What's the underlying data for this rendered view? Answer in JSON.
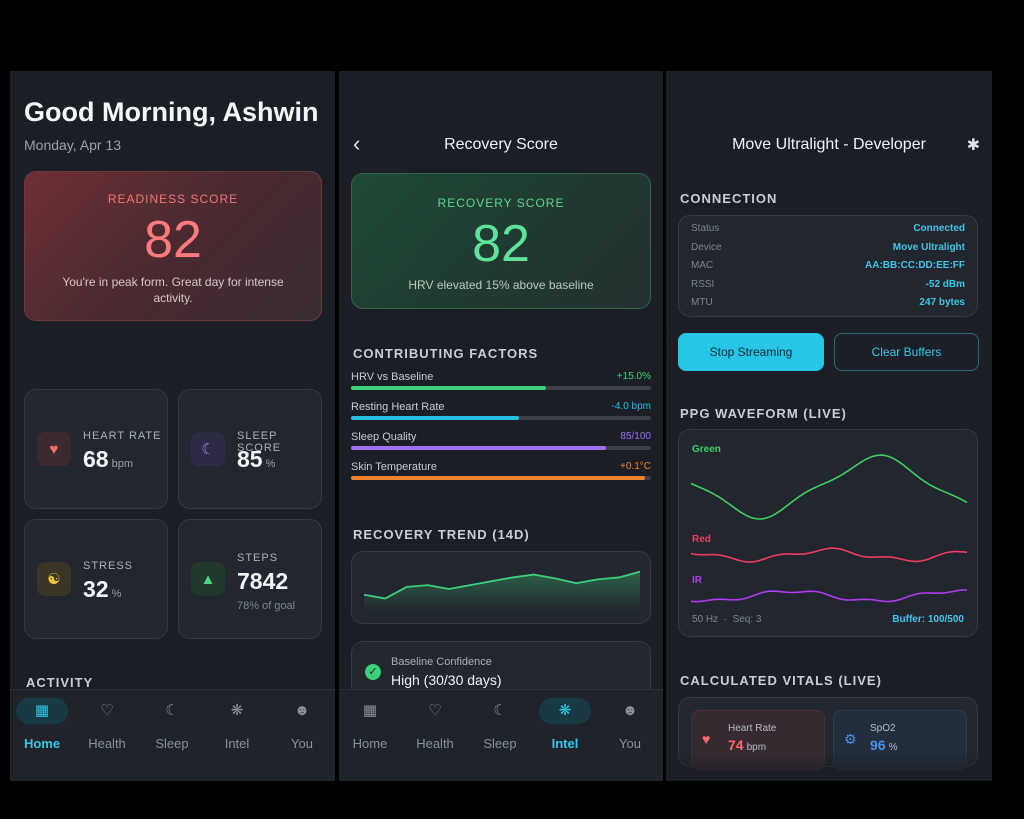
{
  "home": {
    "greeting": "Good Morning, Ashwin",
    "date": "Monday, Apr 13",
    "readiness": {
      "label": "READINESS SCORE",
      "value": "82",
      "description": "You're in peak form. Great day for intense activity."
    },
    "stats": {
      "heart_rate": {
        "label": "HEART RATE",
        "value": "68",
        "unit": "bpm",
        "icon": "heart-icon"
      },
      "sleep_score": {
        "label": "SLEEP SCORE",
        "value": "85",
        "unit": "%",
        "icon": "moon-icon"
      },
      "stress": {
        "label": "STRESS",
        "value": "32",
        "unit": "%",
        "icon": "meditation-icon"
      },
      "steps": {
        "label": "STEPS",
        "value": "7842",
        "subtitle": "78% of goal",
        "icon": "walking-icon"
      }
    },
    "activity_title": "ACTIVITY"
  },
  "nav": {
    "home": "Home",
    "health": "Health",
    "sleep": "Sleep",
    "intel": "Intel",
    "you": "You"
  },
  "recovery": {
    "header": "Recovery Score",
    "card": {
      "label": "RECOVERY SCORE",
      "value": "82",
      "description": "HRV elevated 15% above baseline"
    },
    "factors_title": "CONTRIBUTING FACTORS",
    "factors": [
      {
        "name": "HRV vs Baseline",
        "value": "+15.0%",
        "fill": 0.65,
        "color": "#3ecf7a"
      },
      {
        "name": "Resting Heart Rate",
        "value": "-4.0 bpm",
        "fill": 0.56,
        "color": "#27c0e0"
      },
      {
        "name": "Sleep Quality",
        "value": "85/100",
        "fill": 0.85,
        "color": "#a070ee"
      },
      {
        "name": "Skin Temperature",
        "value": "+0.1°C",
        "fill": 0.98,
        "color": "#f0832e"
      }
    ],
    "trend_title": "RECOVERY TREND (14D)",
    "trend": [
      58,
      54,
      66,
      68,
      64,
      68,
      72,
      76,
      79,
      75,
      70,
      74,
      76,
      82
    ],
    "confidence": {
      "label": "Baseline Confidence",
      "value": "High (30/30 days)"
    }
  },
  "device": {
    "header": "Move Ultralight - Developer",
    "connection_title": "CONNECTION",
    "connection": [
      {
        "key": "Status",
        "value": "Connected"
      },
      {
        "key": "Device",
        "value": "Move Ultralight"
      },
      {
        "key": "MAC",
        "value": "AA:BB:CC:DD:EE:FF"
      },
      {
        "key": "RSSI",
        "value": "-52 dBm"
      },
      {
        "key": "MTU",
        "value": "247 bytes"
      }
    ],
    "stop_label": "Stop Streaming",
    "clear_label": "Clear Buffers",
    "waveform_title": "PPG WAVEFORM (LIVE)",
    "waveform": {
      "green_label": "Green",
      "red_label": "Red",
      "ir_label": "IR",
      "rate": "50 Hz",
      "seq": "Seq: 3",
      "buffer": "Buffer: 100/500",
      "colors": {
        "green": "#3ecf62",
        "red": "#ef3d62",
        "ir": "#b03cf0"
      }
    },
    "vitals_title": "CALCULATED VITALS (LIVE)",
    "vitals": {
      "heart_rate": {
        "label": "Heart Rate",
        "value": "74",
        "unit": "bpm"
      },
      "spo2": {
        "label": "SpO2",
        "value": "96",
        "unit": "%"
      }
    }
  }
}
